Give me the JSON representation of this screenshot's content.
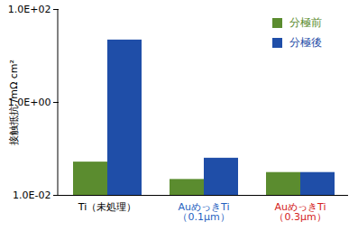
{
  "chart_data": {
    "type": "bar",
    "ylabel": "接触抵抗 /mΩ cm²",
    "categories": [
      "Ti（未処理）",
      "AuめっきTi\n（0.1μm）",
      "AuめっきTi\n（0.3μm）"
    ],
    "series": [
      {
        "name": "分極前",
        "color": "#5b8c2f",
        "values": [
          0.052,
          0.022,
          0.031
        ]
      },
      {
        "name": "分極後",
        "color": "#1f4ea8",
        "values": [
          22,
          0.063,
          0.031
        ]
      }
    ],
    "log": "y",
    "ylim": [
      0.01,
      100
    ],
    "yticks": [
      {
        "value": 0.01,
        "label": "1.0E-02"
      },
      {
        "value": 1,
        "label": "1.0E+00"
      },
      {
        "value": 100,
        "label": "1.0E+02"
      }
    ],
    "grid": false,
    "legend": "top-right"
  }
}
